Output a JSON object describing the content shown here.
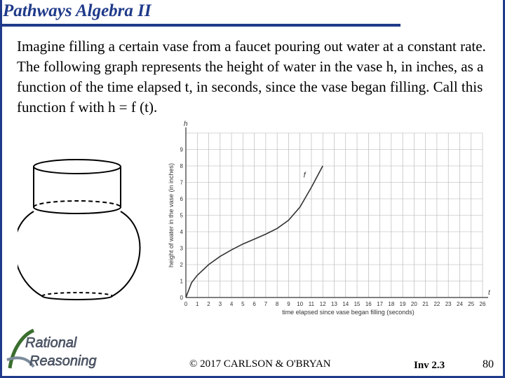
{
  "header": {
    "title": "Pathways Algebra II"
  },
  "body": {
    "paragraph": "Imagine filling a certain vase from a faucet pouring out water at a constant rate. The following graph represents the height of water in the vase h, in inches, as a function of the time elapsed t, in seconds, since the vase began filling. Call this function f with h = f (t)."
  },
  "chart_data": {
    "type": "line",
    "xlabel": "time elapsed since vase began filling (seconds)",
    "ylabel": "height of water in the vase (in inches)",
    "x_axis_var": "t",
    "y_axis_var": "h",
    "xlim": [
      0,
      26
    ],
    "ylim": [
      0,
      10
    ],
    "x_ticks": [
      0,
      1,
      2,
      3,
      4,
      5,
      6,
      7,
      8,
      9,
      10,
      11,
      12,
      13,
      14,
      15,
      16,
      17,
      18,
      19,
      20,
      21,
      22,
      23,
      24,
      25,
      26
    ],
    "y_ticks": [
      0,
      1,
      2,
      3,
      4,
      5,
      6,
      7,
      8,
      9
    ],
    "grid": true,
    "series": [
      {
        "name": "f",
        "x": [
          0,
          0.5,
          1,
          2,
          3,
          4,
          5,
          6,
          7,
          8,
          9,
          10,
          11,
          12
        ],
        "y": [
          0,
          0.9,
          1.35,
          2.0,
          2.5,
          2.9,
          3.25,
          3.55,
          3.85,
          4.2,
          4.7,
          5.5,
          6.7,
          8.0
        ]
      }
    ]
  },
  "footer": {
    "copyright": "© 2017 CARLSON & O'BRYAN",
    "investigation": "Inv 2.3",
    "page_number": "80",
    "logo_line1": "Rational",
    "logo_line2": "Reasoning"
  },
  "colors": {
    "brand_blue": "#1f3a8a",
    "grid": "#b0b0b0"
  }
}
